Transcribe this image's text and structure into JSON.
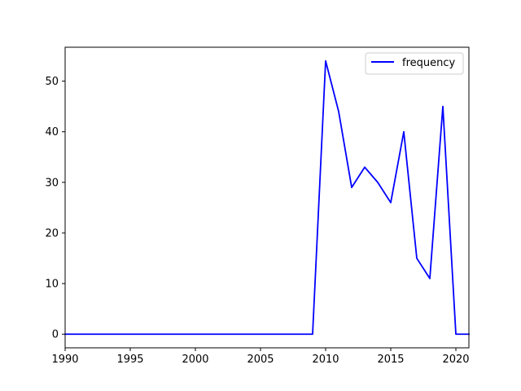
{
  "chart_data": {
    "type": "line",
    "title": "",
    "xlabel": "",
    "ylabel": "",
    "xlim": [
      1990,
      2021
    ],
    "ylim": [
      -2.7,
      56.7
    ],
    "x_ticks": [
      1990,
      1995,
      2000,
      2005,
      2010,
      2015,
      2020
    ],
    "y_ticks": [
      0,
      10,
      20,
      30,
      40,
      50
    ],
    "grid": false,
    "legend_position": "top-right",
    "series": [
      {
        "name": "frequency",
        "color": "#0000ff",
        "x": [
          1990,
          1991,
          1992,
          1993,
          1994,
          1995,
          1996,
          1997,
          1998,
          1999,
          2000,
          2001,
          2002,
          2003,
          2004,
          2005,
          2006,
          2007,
          2008,
          2009,
          2010,
          2011,
          2012,
          2013,
          2014,
          2015,
          2016,
          2017,
          2018,
          2019,
          2020,
          2021
        ],
        "y": [
          0,
          0,
          0,
          0,
          0,
          0,
          0,
          0,
          0,
          0,
          0,
          0,
          0,
          0,
          0,
          0,
          0,
          0,
          0,
          0,
          54,
          44,
          29,
          33,
          30,
          26,
          40,
          15,
          11,
          45,
          0,
          0
        ]
      }
    ]
  }
}
